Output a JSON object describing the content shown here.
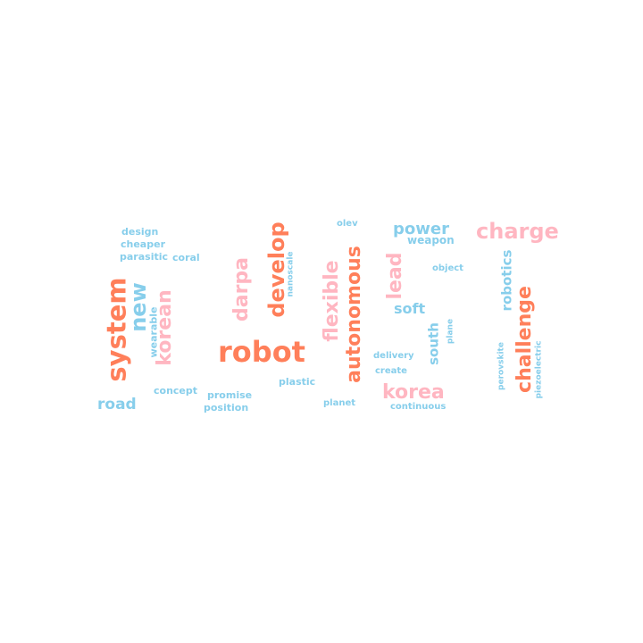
{
  "palette": {
    "orange": "#FF7F5A",
    "pink": "#FFB6C1",
    "blue": "#87CEEB"
  },
  "words": [
    {
      "text": "design",
      "color": "blue"
    },
    {
      "text": "cheaper",
      "color": "blue"
    },
    {
      "text": "parasitic",
      "color": "blue"
    },
    {
      "text": "coral",
      "color": "blue"
    },
    {
      "text": "system",
      "color": "orange"
    },
    {
      "text": "new",
      "color": "blue"
    },
    {
      "text": "wearable",
      "color": "blue"
    },
    {
      "text": "korean",
      "color": "pink"
    },
    {
      "text": "darpa",
      "color": "pink"
    },
    {
      "text": "develop",
      "color": "orange"
    },
    {
      "text": "nanoscale",
      "color": "blue"
    },
    {
      "text": "robot",
      "color": "orange"
    },
    {
      "text": "olev",
      "color": "blue"
    },
    {
      "text": "flexible",
      "color": "pink"
    },
    {
      "text": "autonomous",
      "color": "orange"
    },
    {
      "text": "lead",
      "color": "pink"
    },
    {
      "text": "power",
      "color": "blue"
    },
    {
      "text": "weapon",
      "color": "blue"
    },
    {
      "text": "object",
      "color": "blue"
    },
    {
      "text": "soft",
      "color": "blue"
    },
    {
      "text": "south",
      "color": "blue"
    },
    {
      "text": "plane",
      "color": "blue"
    },
    {
      "text": "charge",
      "color": "pink"
    },
    {
      "text": "robotics",
      "color": "blue"
    },
    {
      "text": "challenge",
      "color": "orange"
    },
    {
      "text": "perovskite",
      "color": "blue"
    },
    {
      "text": "piezoelectric",
      "color": "blue"
    },
    {
      "text": "road",
      "color": "blue"
    },
    {
      "text": "concept",
      "color": "blue"
    },
    {
      "text": "promise",
      "color": "blue"
    },
    {
      "text": "position",
      "color": "blue"
    },
    {
      "text": "plastic",
      "color": "blue"
    },
    {
      "text": "planet",
      "color": "blue"
    },
    {
      "text": "delivery",
      "color": "blue"
    },
    {
      "text": "create",
      "color": "blue"
    },
    {
      "text": "korea",
      "color": "pink"
    },
    {
      "text": "continuous",
      "color": "blue"
    }
  ]
}
